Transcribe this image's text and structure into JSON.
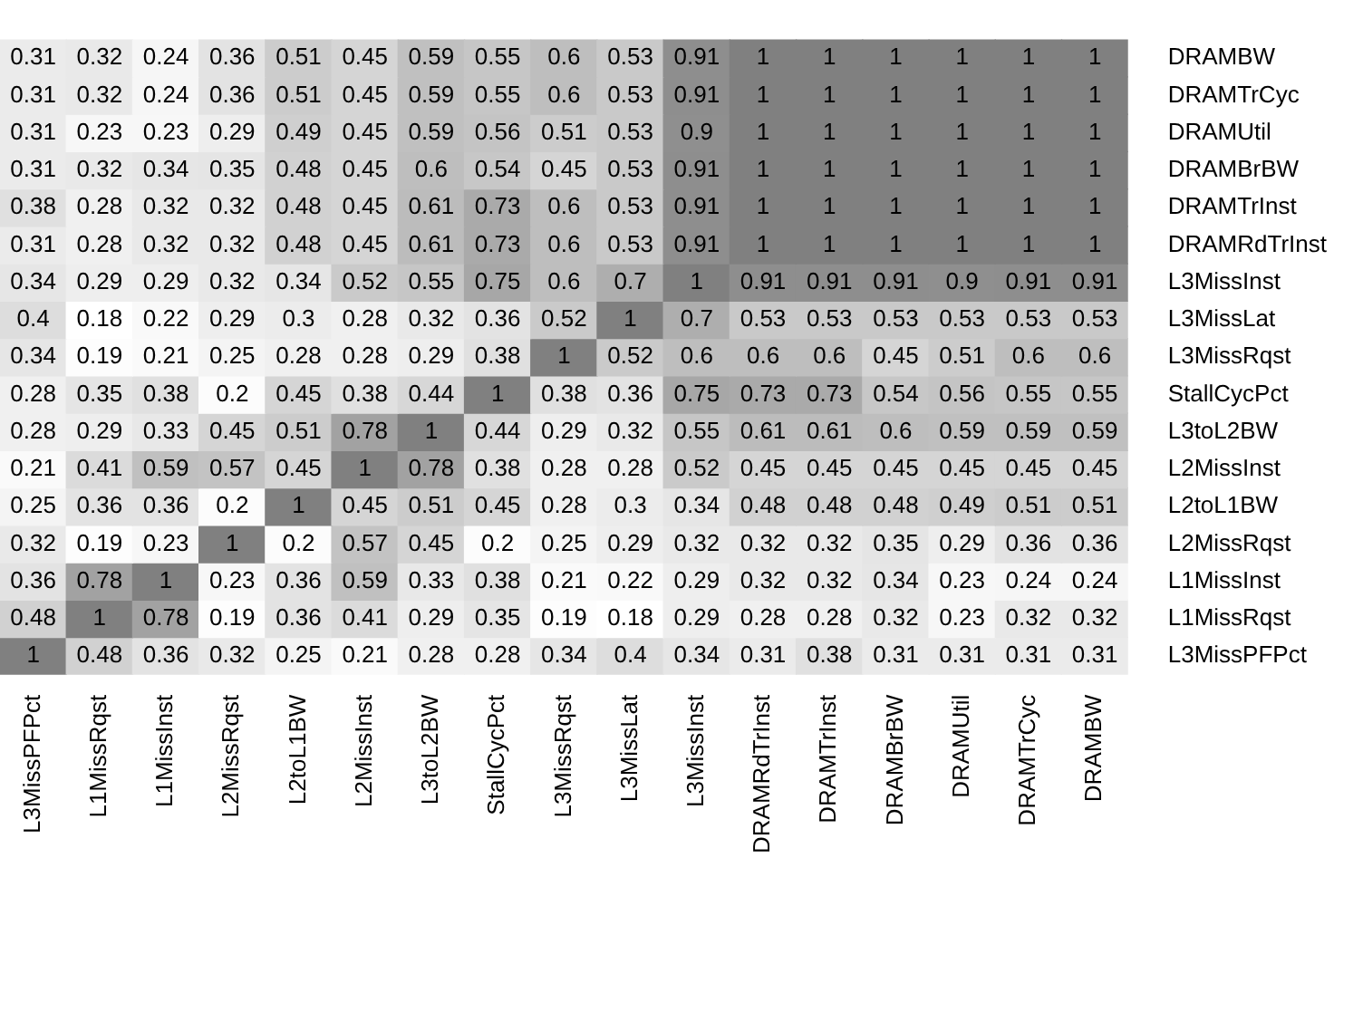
{
  "chart_data": {
    "type": "heatmap",
    "data_labels": true,
    "categories": [
      "L3MissPFPct",
      "L1MissRqst",
      "L1MissInst",
      "L2MissRqst",
      "L2toL1BW",
      "L2MissInst",
      "L3toL2BW",
      "StallCycPct",
      "L3MissRqst",
      "L3MissLat",
      "L3MissInst",
      "DRAMRdTrInst",
      "DRAMTrInst",
      "DRAMBrBW",
      "DRAMUtil",
      "DRAMTrCyc",
      "DRAMBW"
    ],
    "y_categories": [
      "DRAMBW",
      "DRAMTrCyc",
      "DRAMUtil",
      "DRAMBrBW",
      "DRAMTrInst",
      "DRAMRdTrInst",
      "L3MissInst",
      "L3MissLat",
      "L3MissRqst",
      "StallCycPct",
      "L3toL2BW",
      "L2MissInst",
      "L2toL1BW",
      "L2MissRqst",
      "L1MissInst",
      "L1MissRqst",
      "L3MissPFPct"
    ],
    "cells": [
      [
        0.31,
        0.32,
        0.24,
        0.36,
        0.51,
        0.45,
        0.59,
        0.55,
        0.6,
        0.53,
        0.91,
        1,
        1,
        1,
        1,
        1,
        1
      ],
      [
        0.31,
        0.32,
        0.24,
        0.36,
        0.51,
        0.45,
        0.59,
        0.55,
        0.6,
        0.53,
        0.91,
        1,
        1,
        1,
        1,
        1,
        1
      ],
      [
        0.31,
        0.23,
        0.23,
        0.29,
        0.49,
        0.45,
        0.59,
        0.56,
        0.51,
        0.53,
        0.9,
        1,
        1,
        1,
        1,
        1,
        1
      ],
      [
        0.31,
        0.32,
        0.34,
        0.35,
        0.48,
        0.45,
        0.6,
        0.54,
        0.45,
        0.53,
        0.91,
        1,
        1,
        1,
        1,
        1,
        1
      ],
      [
        0.38,
        0.28,
        0.32,
        0.32,
        0.48,
        0.45,
        0.61,
        0.73,
        0.6,
        0.53,
        0.91,
        1,
        1,
        1,
        1,
        1,
        1
      ],
      [
        0.31,
        0.28,
        0.32,
        0.32,
        0.48,
        0.45,
        0.61,
        0.73,
        0.6,
        0.53,
        0.91,
        1,
        1,
        1,
        1,
        1,
        1
      ],
      [
        0.34,
        0.29,
        0.29,
        0.32,
        0.34,
        0.52,
        0.55,
        0.75,
        0.6,
        0.7,
        1,
        0.91,
        0.91,
        0.91,
        0.9,
        0.91,
        0.91
      ],
      [
        0.4,
        0.18,
        0.22,
        0.29,
        0.3,
        0.28,
        0.32,
        0.36,
        0.52,
        1,
        0.7,
        0.53,
        0.53,
        0.53,
        0.53,
        0.53,
        0.53
      ],
      [
        0.34,
        0.19,
        0.21,
        0.25,
        0.28,
        0.28,
        0.29,
        0.38,
        1,
        0.52,
        0.6,
        0.6,
        0.6,
        0.45,
        0.51,
        0.6,
        0.6
      ],
      [
        0.28,
        0.35,
        0.38,
        0.2,
        0.45,
        0.38,
        0.44,
        1,
        0.38,
        0.36,
        0.75,
        0.73,
        0.73,
        0.54,
        0.56,
        0.55,
        0.55
      ],
      [
        0.28,
        0.29,
        0.33,
        0.45,
        0.51,
        0.78,
        1,
        0.44,
        0.29,
        0.32,
        0.55,
        0.61,
        0.61,
        0.6,
        0.59,
        0.59,
        0.59
      ],
      [
        0.21,
        0.41,
        0.59,
        0.57,
        0.45,
        1,
        0.78,
        0.38,
        0.28,
        0.28,
        0.52,
        0.45,
        0.45,
        0.45,
        0.45,
        0.45,
        0.45
      ],
      [
        0.25,
        0.36,
        0.36,
        0.2,
        1,
        0.45,
        0.51,
        0.45,
        0.28,
        0.3,
        0.34,
        0.48,
        0.48,
        0.48,
        0.49,
        0.51,
        0.51
      ],
      [
        0.32,
        0.19,
        0.23,
        1,
        0.2,
        0.57,
        0.45,
        0.2,
        0.25,
        0.29,
        0.32,
        0.32,
        0.32,
        0.35,
        0.29,
        0.36,
        0.36
      ],
      [
        0.36,
        0.78,
        1,
        0.23,
        0.36,
        0.59,
        0.33,
        0.38,
        0.21,
        0.22,
        0.29,
        0.32,
        0.32,
        0.34,
        0.23,
        0.24,
        0.24
      ],
      [
        0.48,
        1,
        0.78,
        0.19,
        0.36,
        0.41,
        0.29,
        0.35,
        0.19,
        0.18,
        0.29,
        0.28,
        0.28,
        0.32,
        0.23,
        0.32,
        0.32
      ],
      [
        1,
        0.48,
        0.36,
        0.32,
        0.25,
        0.21,
        0.28,
        0.28,
        0.34,
        0.4,
        0.34,
        0.31,
        0.38,
        0.31,
        0.31,
        0.31,
        0.31
      ]
    ]
  }
}
